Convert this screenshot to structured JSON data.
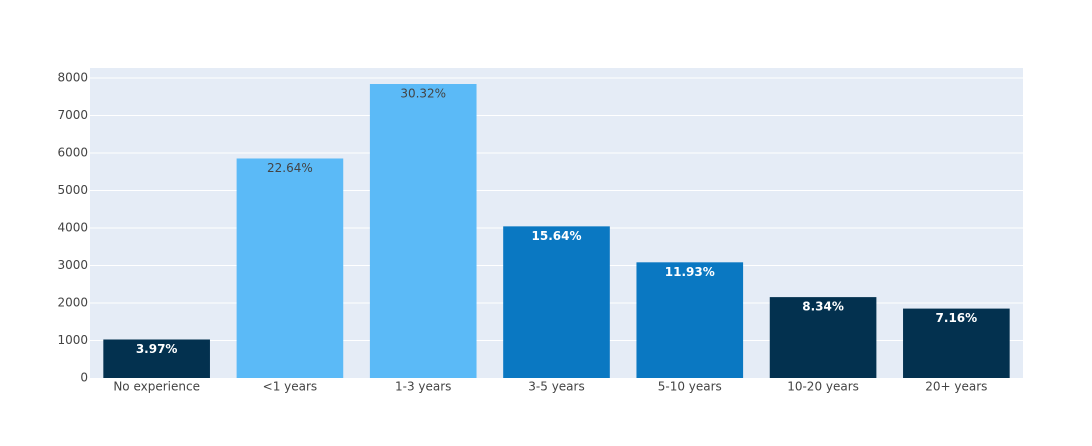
{
  "chart_data": {
    "type": "bar",
    "categories": [
      "No experience",
      "<1 years",
      "1-3 years",
      "3-5 years",
      "5-10 years",
      "10-20 years",
      "20+ years"
    ],
    "values": [
      1027,
      5854,
      7840,
      4044,
      3085,
      2157,
      1851
    ],
    "bar_labels": [
      "3.97%",
      "22.64%",
      "30.32%",
      "15.64%",
      "11.93%",
      "8.34%",
      "7.16%"
    ],
    "colors": [
      "#03314f",
      "#5bbaf7",
      "#5bbaf7",
      "#0a78c2",
      "#0a78c2",
      "#03314f",
      "#03314f"
    ],
    "ylim": [
      0,
      8267
    ],
    "yticks": [
      0,
      1000,
      2000,
      3000,
      4000,
      5000,
      6000,
      7000,
      8000
    ],
    "grid": true
  }
}
